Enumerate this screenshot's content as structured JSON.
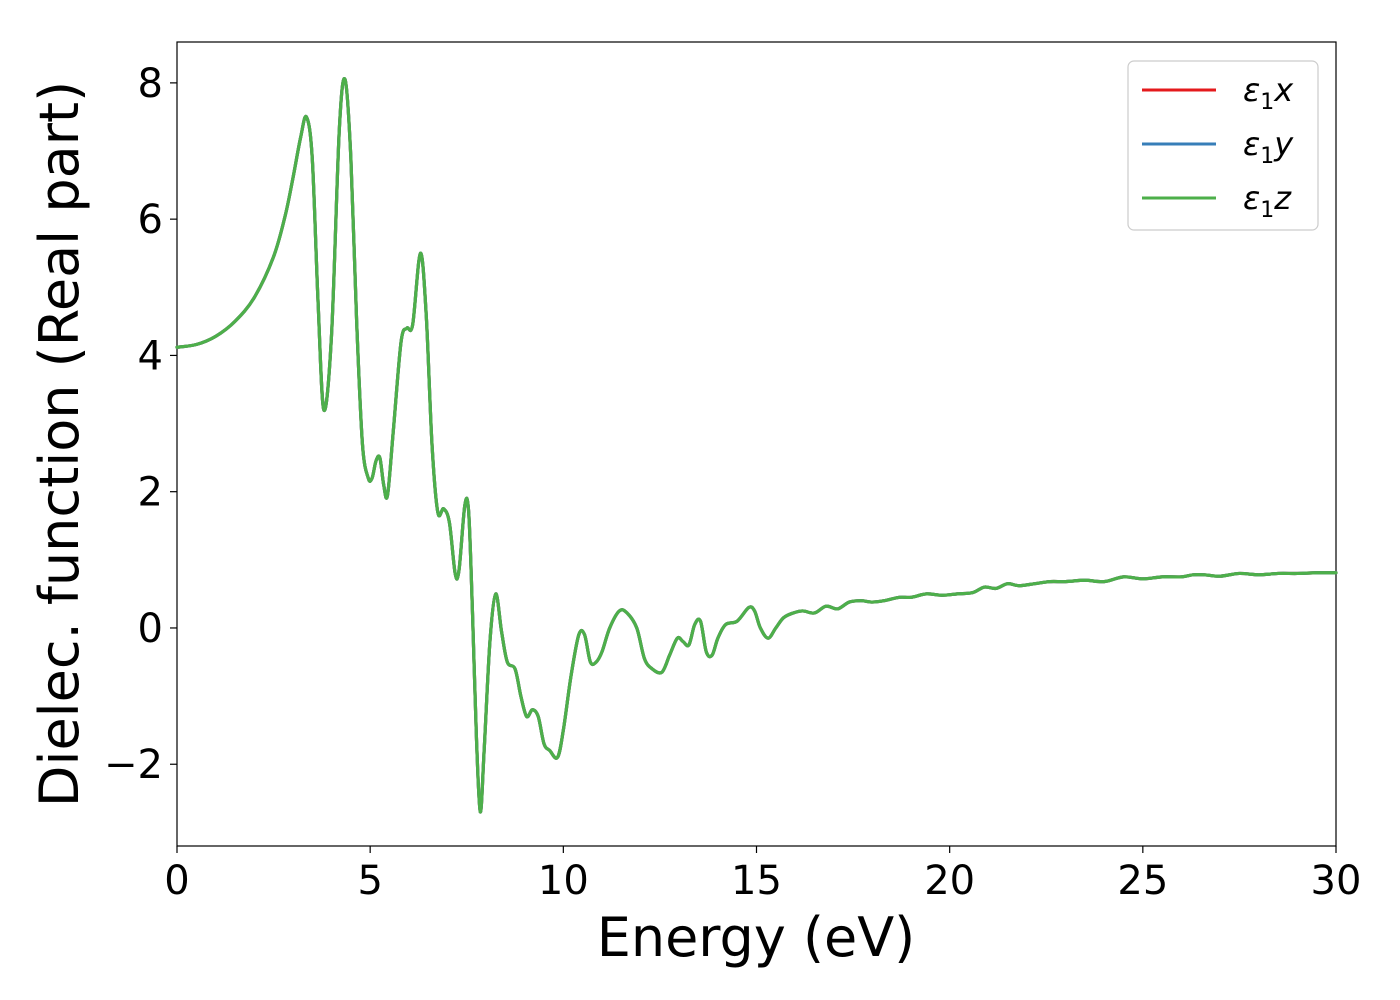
{
  "chart_data": {
    "type": "line",
    "xlabel": "Energy (eV)",
    "ylabel": "Dielec. function (Real part)",
    "xlim": [
      0,
      30
    ],
    "ylim": [
      -3.2,
      8.6
    ],
    "xticks": [
      0,
      5,
      10,
      15,
      20,
      25,
      30
    ],
    "xtick_labels": [
      "0",
      "5",
      "10",
      "15",
      "20",
      "25",
      "30"
    ],
    "yticks": [
      -2,
      0,
      2,
      4,
      6,
      8
    ],
    "ytick_labels": [
      "−2",
      "0",
      "2",
      "4",
      "6",
      "8"
    ],
    "grid": false,
    "legend_position": "top-right",
    "x": [
      0,
      0.5,
      1.0,
      1.5,
      2.0,
      2.5,
      2.8,
      3.0,
      3.2,
      3.35,
      3.5,
      3.65,
      3.8,
      4.0,
      4.2,
      4.35,
      4.5,
      4.65,
      4.8,
      4.95,
      5.05,
      5.15,
      5.25,
      5.35,
      5.45,
      5.6,
      5.8,
      5.95,
      6.1,
      6.3,
      6.45,
      6.6,
      6.75,
      6.9,
      7.05,
      7.2,
      7.3,
      7.45,
      7.55,
      7.65,
      7.75,
      7.85,
      7.95,
      8.1,
      8.25,
      8.4,
      8.55,
      8.75,
      8.9,
      9.05,
      9.2,
      9.35,
      9.5,
      9.65,
      9.85,
      10.0,
      10.2,
      10.4,
      10.55,
      10.7,
      10.85,
      11.0,
      11.2,
      11.45,
      11.65,
      11.9,
      12.1,
      12.3,
      12.55,
      12.75,
      12.95,
      13.1,
      13.25,
      13.4,
      13.55,
      13.7,
      13.85,
      14.0,
      14.2,
      14.5,
      14.8,
      14.95,
      15.1,
      15.3,
      15.5,
      15.7,
      15.95,
      16.2,
      16.5,
      16.8,
      17.1,
      17.4,
      17.7,
      18.0,
      18.3,
      18.7,
      19.0,
      19.4,
      19.8,
      20.2,
      20.6,
      20.9,
      21.2,
      21.5,
      21.8,
      22.2,
      22.6,
      23.0,
      23.5,
      24.0,
      24.5,
      25.0,
      25.5,
      26.0,
      26.3,
      26.6,
      27.0,
      27.5,
      28.0,
      28.5,
      29.0,
      29.5,
      30.0
    ],
    "series": [
      {
        "name": "ε₁x",
        "color": "#e41a1c",
        "values": [
          4.12,
          4.16,
          4.28,
          4.5,
          4.85,
          5.45,
          6.05,
          6.6,
          7.2,
          7.5,
          6.9,
          4.8,
          3.2,
          4.3,
          7.3,
          8.05,
          6.9,
          4.5,
          2.7,
          2.2,
          2.2,
          2.45,
          2.5,
          2.1,
          1.95,
          2.9,
          4.2,
          4.4,
          4.45,
          5.5,
          4.6,
          2.7,
          1.7,
          1.75,
          1.55,
          0.8,
          0.85,
          1.8,
          1.7,
          0.2,
          -1.6,
          -2.7,
          -1.8,
          -0.2,
          0.5,
          -0.05,
          -0.5,
          -0.6,
          -1.0,
          -1.3,
          -1.2,
          -1.3,
          -1.7,
          -1.8,
          -1.9,
          -1.5,
          -0.7,
          -0.1,
          -0.1,
          -0.5,
          -0.5,
          -0.35,
          0.0,
          0.25,
          0.22,
          0.0,
          -0.45,
          -0.6,
          -0.65,
          -0.4,
          -0.15,
          -0.2,
          -0.25,
          0.05,
          0.1,
          -0.35,
          -0.4,
          -0.15,
          0.05,
          0.1,
          0.3,
          0.25,
          0.0,
          -0.15,
          0.0,
          0.15,
          0.22,
          0.25,
          0.22,
          0.32,
          0.28,
          0.38,
          0.4,
          0.38,
          0.4,
          0.45,
          0.45,
          0.5,
          0.48,
          0.5,
          0.52,
          0.6,
          0.58,
          0.65,
          0.62,
          0.65,
          0.68,
          0.68,
          0.7,
          0.68,
          0.75,
          0.72,
          0.75,
          0.75,
          0.78,
          0.78,
          0.76,
          0.8,
          0.78,
          0.8,
          0.8,
          0.81,
          0.81
        ]
      },
      {
        "name": "ε₁y",
        "color": "#377eb8",
        "values": [
          4.12,
          4.16,
          4.28,
          4.5,
          4.85,
          5.45,
          6.05,
          6.6,
          7.2,
          7.5,
          6.9,
          4.8,
          3.2,
          4.3,
          7.3,
          8.05,
          6.9,
          4.5,
          2.7,
          2.2,
          2.2,
          2.45,
          2.5,
          2.1,
          1.95,
          2.9,
          4.2,
          4.4,
          4.45,
          5.5,
          4.6,
          2.7,
          1.7,
          1.75,
          1.55,
          0.8,
          0.85,
          1.8,
          1.7,
          0.2,
          -1.6,
          -2.7,
          -1.8,
          -0.2,
          0.5,
          -0.05,
          -0.5,
          -0.6,
          -1.0,
          -1.3,
          -1.2,
          -1.3,
          -1.7,
          -1.8,
          -1.9,
          -1.5,
          -0.7,
          -0.1,
          -0.1,
          -0.5,
          -0.5,
          -0.35,
          0.0,
          0.25,
          0.22,
          0.0,
          -0.45,
          -0.6,
          -0.65,
          -0.4,
          -0.15,
          -0.2,
          -0.25,
          0.05,
          0.1,
          -0.35,
          -0.4,
          -0.15,
          0.05,
          0.1,
          0.3,
          0.25,
          0.0,
          -0.15,
          0.0,
          0.15,
          0.22,
          0.25,
          0.22,
          0.32,
          0.28,
          0.38,
          0.4,
          0.38,
          0.4,
          0.45,
          0.45,
          0.5,
          0.48,
          0.5,
          0.52,
          0.6,
          0.58,
          0.65,
          0.62,
          0.65,
          0.68,
          0.68,
          0.7,
          0.68,
          0.75,
          0.72,
          0.75,
          0.75,
          0.78,
          0.78,
          0.76,
          0.8,
          0.78,
          0.8,
          0.8,
          0.81,
          0.81
        ]
      },
      {
        "name": "ε₁z",
        "color": "#4daf4a",
        "values": [
          4.12,
          4.16,
          4.28,
          4.5,
          4.85,
          5.45,
          6.05,
          6.6,
          7.2,
          7.5,
          6.9,
          4.8,
          3.2,
          4.3,
          7.3,
          8.05,
          6.9,
          4.5,
          2.7,
          2.2,
          2.2,
          2.45,
          2.5,
          2.1,
          1.95,
          2.9,
          4.2,
          4.4,
          4.45,
          5.5,
          4.6,
          2.7,
          1.7,
          1.75,
          1.55,
          0.8,
          0.85,
          1.8,
          1.7,
          0.2,
          -1.6,
          -2.7,
          -1.8,
          -0.2,
          0.5,
          -0.05,
          -0.5,
          -0.6,
          -1.0,
          -1.3,
          -1.2,
          -1.3,
          -1.7,
          -1.8,
          -1.9,
          -1.5,
          -0.7,
          -0.1,
          -0.1,
          -0.5,
          -0.5,
          -0.35,
          0.0,
          0.25,
          0.22,
          0.0,
          -0.45,
          -0.6,
          -0.65,
          -0.4,
          -0.15,
          -0.2,
          -0.25,
          0.05,
          0.1,
          -0.35,
          -0.4,
          -0.15,
          0.05,
          0.1,
          0.3,
          0.25,
          0.0,
          -0.15,
          0.0,
          0.15,
          0.22,
          0.25,
          0.22,
          0.32,
          0.28,
          0.38,
          0.4,
          0.38,
          0.4,
          0.45,
          0.45,
          0.5,
          0.48,
          0.5,
          0.52,
          0.6,
          0.58,
          0.65,
          0.62,
          0.65,
          0.68,
          0.68,
          0.7,
          0.68,
          0.75,
          0.72,
          0.75,
          0.75,
          0.78,
          0.78,
          0.76,
          0.8,
          0.78,
          0.8,
          0.8,
          0.81,
          0.81
        ]
      }
    ],
    "legend": [
      {
        "base": "ε",
        "sub": "1",
        "suffix": "x"
      },
      {
        "base": "ε",
        "sub": "1",
        "suffix": "y"
      },
      {
        "base": "ε",
        "sub": "1",
        "suffix": "z"
      }
    ]
  }
}
